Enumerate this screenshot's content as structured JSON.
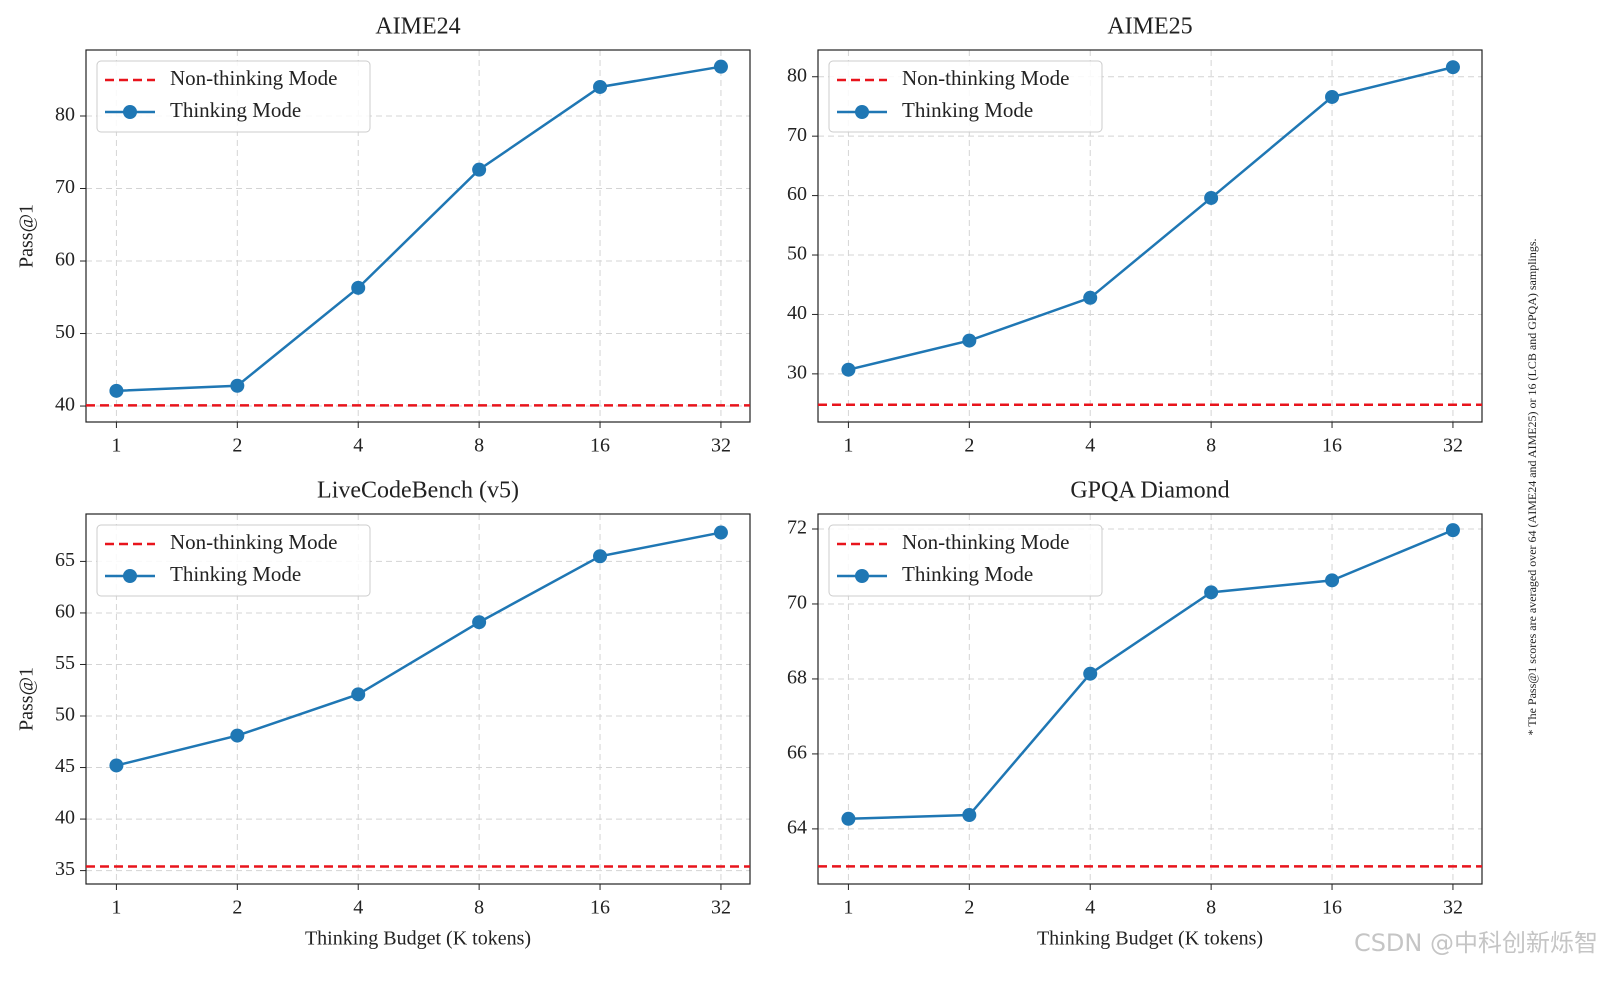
{
  "chart_data": [
    {
      "type": "line",
      "title": "AIME24",
      "ylabel": "Pass@1",
      "xscale": "log2",
      "grid": true,
      "legend": "upper left",
      "x": [
        1,
        2,
        4,
        8,
        16,
        32
      ],
      "xlim": [
        0.84,
        37.8
      ],
      "xticks": [
        1,
        2,
        4,
        8,
        16,
        32
      ],
      "ylim": [
        37.8,
        89.1
      ],
      "yticks": [
        40,
        50,
        60,
        70,
        80
      ],
      "series": [
        {
          "name": "Non-thinking Mode",
          "color": "#e8141c",
          "linestyle": "dashed",
          "value": 40.1
        },
        {
          "name": "Thinking Mode",
          "color": "#1f77b4",
          "values": [
            42.1,
            42.8,
            56.3,
            72.6,
            84.0,
            86.8
          ]
        }
      ]
    },
    {
      "type": "line",
      "title": "AIME25",
      "xscale": "log2",
      "grid": true,
      "legend": "upper left",
      "x": [
        1,
        2,
        4,
        8,
        16,
        32
      ],
      "xlim": [
        0.84,
        37.8
      ],
      "xticks": [
        1,
        2,
        4,
        8,
        16,
        32
      ],
      "ylim": [
        21.9,
        84.5
      ],
      "yticks": [
        30,
        40,
        50,
        60,
        70,
        80
      ],
      "series": [
        {
          "name": "Non-thinking Mode",
          "color": "#e8141c",
          "linestyle": "dashed",
          "value": 24.8
        },
        {
          "name": "Thinking Mode",
          "color": "#1f77b4",
          "values": [
            30.7,
            35.6,
            42.8,
            59.6,
            76.6,
            81.6
          ]
        }
      ]
    },
    {
      "type": "line",
      "title": "LiveCodeBench (v5)",
      "ylabel": "Pass@1",
      "xlabel": "Thinking Budget (K tokens)",
      "xscale": "log2",
      "grid": true,
      "legend": "upper left",
      "x": [
        1,
        2,
        4,
        8,
        16,
        32
      ],
      "xlim": [
        0.84,
        37.8
      ],
      "xticks": [
        1,
        2,
        4,
        8,
        16,
        32
      ],
      "ylim": [
        33.7,
        69.6
      ],
      "yticks": [
        35,
        40,
        45,
        50,
        55,
        60,
        65
      ],
      "series": [
        {
          "name": "Non-thinking Mode",
          "color": "#e8141c",
          "linestyle": "dashed",
          "value": 35.4
        },
        {
          "name": "Thinking Mode",
          "color": "#1f77b4",
          "values": [
            45.2,
            48.1,
            52.1,
            59.1,
            65.5,
            67.8
          ]
        }
      ]
    },
    {
      "type": "line",
      "title": "GPQA Diamond",
      "xlabel": "Thinking Budget (K tokens)",
      "xscale": "log2",
      "grid": true,
      "legend": "upper left",
      "x": [
        1,
        2,
        4,
        8,
        16,
        32
      ],
      "xlim": [
        0.84,
        37.8
      ],
      "xticks": [
        1,
        2,
        4,
        8,
        16,
        32
      ],
      "ylim": [
        62.53,
        72.4
      ],
      "yticks": [
        64,
        66,
        68,
        70,
        72
      ],
      "series": [
        {
          "name": "Non-thinking Mode",
          "color": "#e8141c",
          "linestyle": "dashed",
          "value": 63.0
        },
        {
          "name": "Thinking Mode",
          "color": "#1f77b4",
          "values": [
            64.27,
            64.37,
            68.14,
            70.31,
            70.63,
            71.97
          ]
        }
      ]
    }
  ],
  "note": "* The Pass@1 scores are averaged over 64 (AIME24 and AIME25) or 16 (LCB and GPQA) samplings.",
  "watermark": "CSDN @中科创新烁智"
}
